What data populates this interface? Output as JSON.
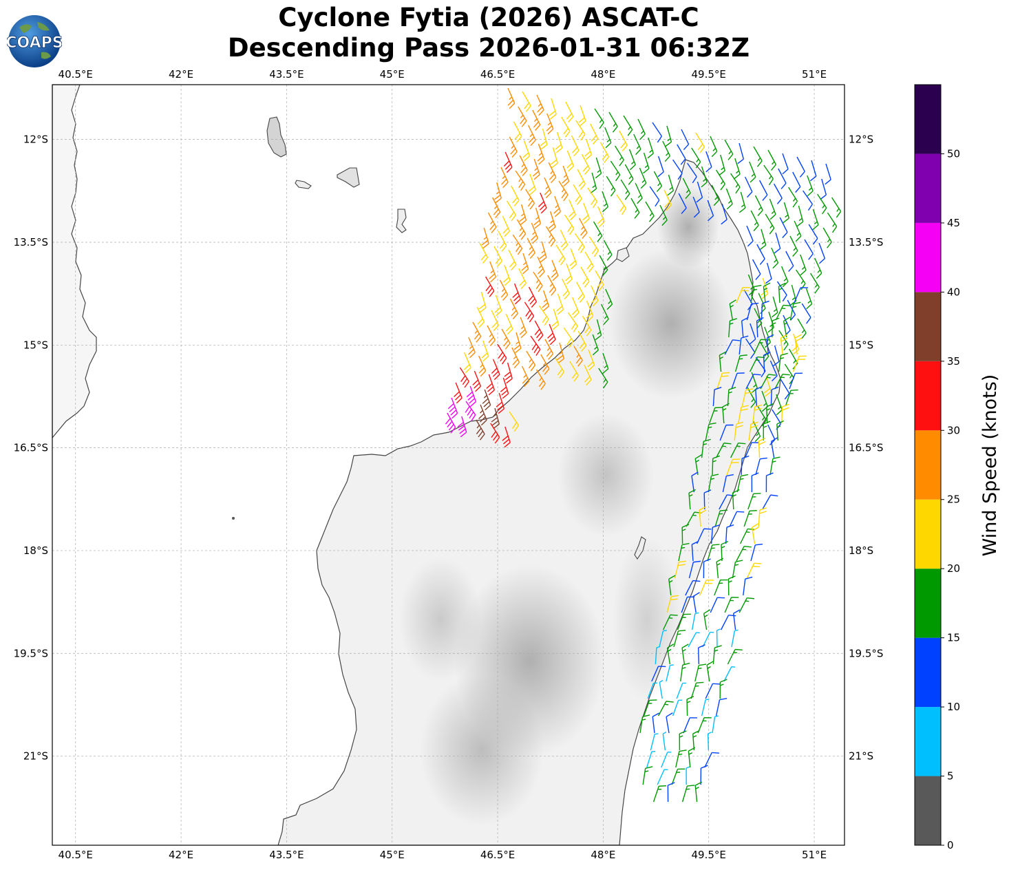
{
  "title": {
    "line1": "Cyclone Fytia (2026) ASCAT-C",
    "line2": "Descending Pass 2026-01-31 06:32Z"
  },
  "logo": {
    "text": "COAPS",
    "icon": "globe-logo"
  },
  "map": {
    "lon_range": [
      40.17,
      51.43
    ],
    "lat_range": [
      -22.3,
      -11.2
    ],
    "lon_ticks": [
      {
        "value": 40.5,
        "label": "40.5°E"
      },
      {
        "value": 42,
        "label": "42°E"
      },
      {
        "value": 43.5,
        "label": "43.5°E"
      },
      {
        "value": 45,
        "label": "45°E"
      },
      {
        "value": 46.5,
        "label": "46.5°E"
      },
      {
        "value": 48,
        "label": "48°E"
      },
      {
        "value": 49.5,
        "label": "49.5°E"
      },
      {
        "value": 51,
        "label": "51°E"
      }
    ],
    "lat_ticks": [
      {
        "value": -12,
        "label": "12°S"
      },
      {
        "value": -13.5,
        "label": "13.5°S"
      },
      {
        "value": -15,
        "label": "15°S"
      },
      {
        "value": -16.5,
        "label": "16.5°S"
      },
      {
        "value": -18,
        "label": "18°S"
      },
      {
        "value": -19.5,
        "label": "19.5°S"
      },
      {
        "value": -21,
        "label": "21°S"
      }
    ],
    "grid": "dashed"
  },
  "colorbar": {
    "title": "Wind Speed (knots)",
    "ticks": [
      "0",
      "5",
      "10",
      "15",
      "20",
      "25",
      "30",
      "35",
      "40",
      "45",
      "50"
    ],
    "bins": [
      {
        "from": 0,
        "to": 5,
        "color": "#595959"
      },
      {
        "from": 5,
        "to": 10,
        "color": "#00bfff"
      },
      {
        "from": 10,
        "to": 15,
        "color": "#0040ff"
      },
      {
        "from": 15,
        "to": 20,
        "color": "#009900"
      },
      {
        "from": 20,
        "to": 25,
        "color": "#ffd700"
      },
      {
        "from": 25,
        "to": 30,
        "color": "#ff8c00"
      },
      {
        "from": 30,
        "to": 35,
        "color": "#ff1010"
      },
      {
        "from": 35,
        "to": 40,
        "color": "#7f3f2a"
      },
      {
        "from": 40,
        "to": 45,
        "color": "#f500f5"
      },
      {
        "from": 45,
        "to": 50,
        "color": "#8000b0"
      },
      {
        "from": 50,
        "to": 55,
        "color": "#2a004f"
      }
    ]
  }
}
